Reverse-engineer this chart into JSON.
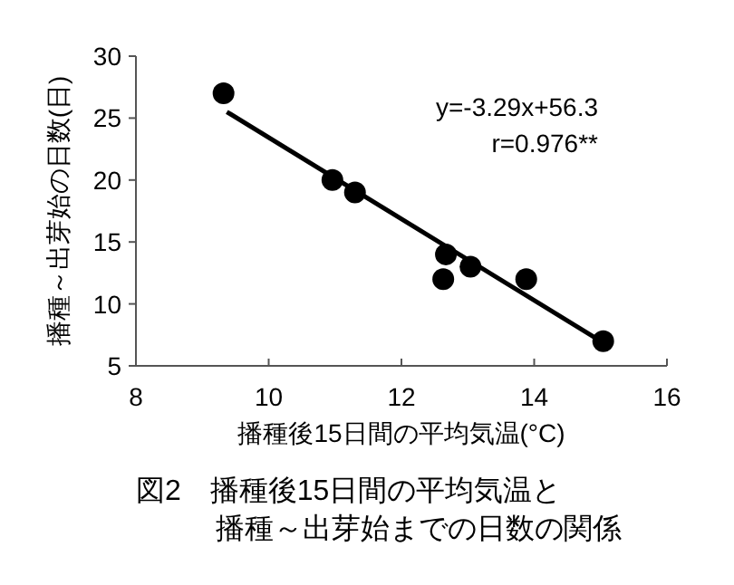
{
  "chart_data": {
    "type": "scatter",
    "title": "図2　播種後15日間の平均気温と",
    "subtitle": "播種～出芽始までの日数の関係",
    "xlabel": "播種後15日間の平均気温(°C)",
    "ylabel": "播種～出芽始の日数(日)",
    "xlim": [
      8,
      16
    ],
    "xticks": [
      8,
      10,
      12,
      14,
      16
    ],
    "ylim": [
      5,
      30
    ],
    "yticks": [
      5,
      10,
      15,
      20,
      25,
      30
    ],
    "grid": false,
    "series": [
      {
        "color": "#000000",
        "marker": "circle",
        "x": [
          9.32,
          10.96,
          11.3,
          12.67,
          12.63,
          13.04,
          13.88,
          15.04
        ],
        "values": [
          27,
          20,
          19,
          14,
          12,
          13,
          12,
          7
        ]
      },
      {
        "type": "line",
        "color": "#000000",
        "x": [
          9.37,
          15.0
        ],
        "values": [
          25.5,
          7.0
        ]
      }
    ],
    "annotations": [
      "y=-3.29x+56.3",
      "r=0.976**"
    ]
  }
}
